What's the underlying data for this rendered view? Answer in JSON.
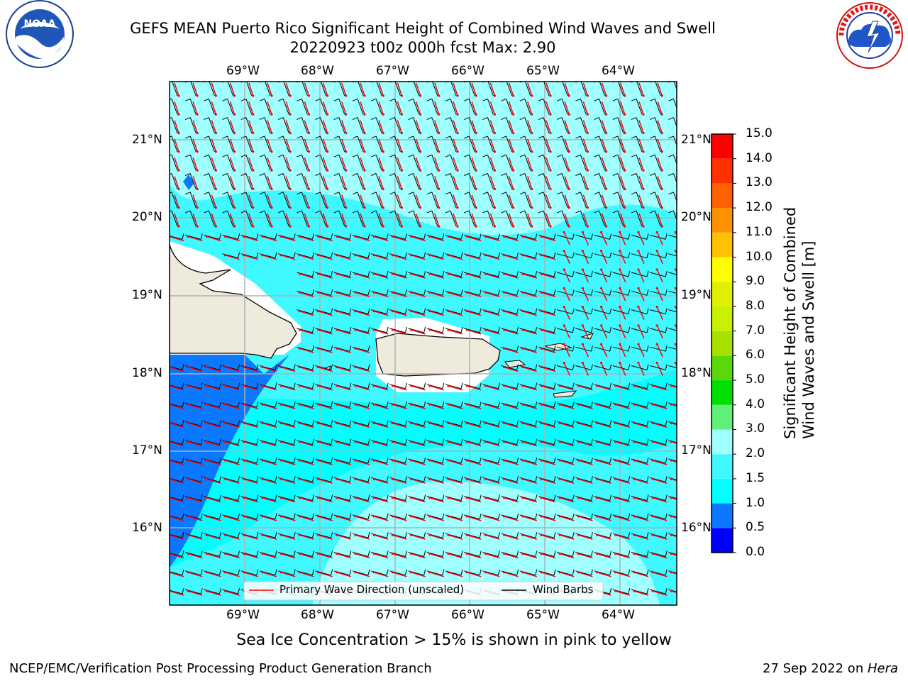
{
  "header": {
    "title_line1": "GEFS MEAN Puerto Rico Significant Height of Combined Wind Waves and Swell",
    "title_line2": "20220923 t00z 000h fcst   Max: 2.90"
  },
  "logos": {
    "left": {
      "text": "NOAA",
      "ring_text": "NATIONAL OCEANIC AND ATMOSPHERIC ADMINISTRATION · U.S. DEPARTMENT OF COMMERCE"
    },
    "right": {
      "ring_text": "NATIONAL WEATHER SERVICE"
    }
  },
  "map": {
    "lon_labels": [
      "69°W",
      "68°W",
      "67°W",
      "66°W",
      "65°W",
      "64°W"
    ],
    "lat_labels": [
      "21°N",
      "20°N",
      "19°N",
      "18°N",
      "17°N",
      "16°N"
    ],
    "legend": {
      "wave_dir": "Primary Wave Direction (unscaled)",
      "barbs": "Wind Barbs"
    },
    "colors": {
      "wave_arrow": "#ff0000",
      "barb": "#000000",
      "land": "#efebdc",
      "grid": "#b0b0b0"
    }
  },
  "colorbar": {
    "label_line1": "Significant Height of Combined",
    "label_line2": "Wind Waves and Swell [m]",
    "ticks": [
      "15.0",
      "14.0",
      "13.0",
      "12.0",
      "11.0",
      "10.0",
      "9.0",
      "8.0",
      "7.0",
      "6.0",
      "5.0",
      "4.0",
      "3.0",
      "2.0",
      "1.5",
      "1.0",
      "0.5",
      "0.0"
    ],
    "levels": [
      {
        "from": 0.0,
        "to": 0.5,
        "color": "#0000ff"
      },
      {
        "from": 0.5,
        "to": 1.0,
        "color": "#0a78ff"
      },
      {
        "from": 1.0,
        "to": 1.5,
        "color": "#00ffff"
      },
      {
        "from": 1.5,
        "to": 2.0,
        "color": "#40f8ff"
      },
      {
        "from": 2.0,
        "to": 3.0,
        "color": "#a0ffff"
      },
      {
        "from": 3.0,
        "to": 4.0,
        "color": "#5ff07a"
      },
      {
        "from": 4.0,
        "to": 5.0,
        "color": "#00e000"
      },
      {
        "from": 5.0,
        "to": 6.0,
        "color": "#5ad80a"
      },
      {
        "from": 6.0,
        "to": 7.0,
        "color": "#a8e000"
      },
      {
        "from": 7.0,
        "to": 8.0,
        "color": "#c8f000"
      },
      {
        "from": 8.0,
        "to": 9.0,
        "color": "#e0f000"
      },
      {
        "from": 9.0,
        "to": 10.0,
        "color": "#ffff00"
      },
      {
        "from": 10.0,
        "to": 11.0,
        "color": "#ffc000"
      },
      {
        "from": 11.0,
        "to": 12.0,
        "color": "#ff9000"
      },
      {
        "from": 12.0,
        "to": 13.0,
        "color": "#ff6000"
      },
      {
        "from": 13.0,
        "to": 14.0,
        "color": "#ff3000"
      },
      {
        "from": 14.0,
        "to": 15.0,
        "color": "#ff0000"
      }
    ]
  },
  "notes": {
    "ice": "Sea Ice Concentration > 15% is shown in pink to yellow"
  },
  "footer": {
    "left": "NCEP/EMC/Verification Post Processing Product Generation Branch",
    "right_date": "27 Sep 2022 on ",
    "right_host": "Hera"
  }
}
